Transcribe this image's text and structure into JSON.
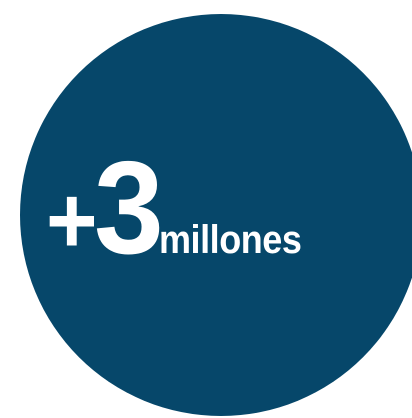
{
  "badge": {
    "sign": "+",
    "number": "3",
    "unit": "millones",
    "background_color": "#06476a",
    "text_color": "#ffffff"
  }
}
